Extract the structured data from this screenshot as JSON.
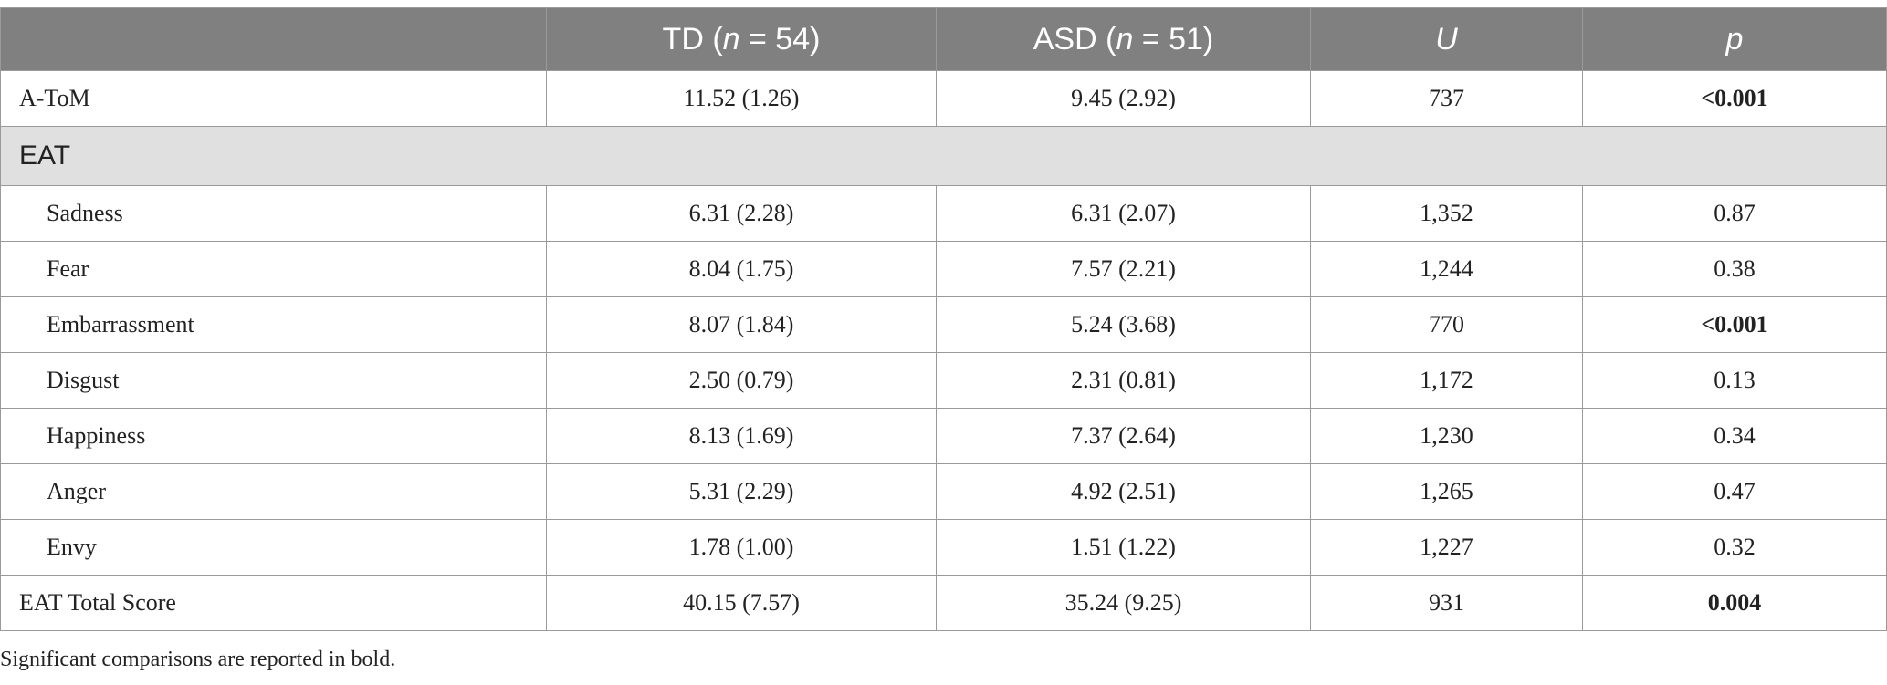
{
  "table": {
    "headers": {
      "col0": "",
      "td": {
        "pre": "TD (",
        "n": "n",
        "post": " = 54)"
      },
      "asd": {
        "pre": "ASD (",
        "n": "n",
        "post": " = 51)"
      },
      "u": "U",
      "p": "p"
    },
    "atom": {
      "label": "A-ToM",
      "td": "11.52 (1.26)",
      "asd": "9.45 (2.92)",
      "u": "737",
      "p": "<0.001"
    },
    "section": "EAT",
    "rows": [
      {
        "label": "Sadness",
        "td": "6.31 (2.28)",
        "asd": "6.31 (2.07)",
        "u": "1,352",
        "p": "0.87"
      },
      {
        "label": "Fear",
        "td": "8.04 (1.75)",
        "asd": "7.57 (2.21)",
        "u": "1,244",
        "p": "0.38"
      },
      {
        "label": "Embarrassment",
        "td": "8.07 (1.84)",
        "asd": "5.24 (3.68)",
        "u": "770",
        "p": "<0.001"
      },
      {
        "label": "Disgust",
        "td": "2.50 (0.79)",
        "asd": "2.31 (0.81)",
        "u": "1,172",
        "p": "0.13"
      },
      {
        "label": "Happiness",
        "td": "8.13 (1.69)",
        "asd": "7.37 (2.64)",
        "u": "1,230",
        "p": "0.34"
      },
      {
        "label": "Anger",
        "td": "5.31 (2.29)",
        "asd": "4.92 (2.51)",
        "u": "1,265",
        "p": "0.47"
      },
      {
        "label": "Envy",
        "td": "1.78 (1.00)",
        "asd": "1.51 (1.22)",
        "u": "1,227",
        "p": "0.32"
      }
    ],
    "total": {
      "label": "EAT Total Score",
      "td": "40.15 (7.57)",
      "asd": "35.24 (9.25)",
      "u": "931",
      "p": "0.004"
    }
  },
  "footnote": "Significant comparisons are reported in bold."
}
